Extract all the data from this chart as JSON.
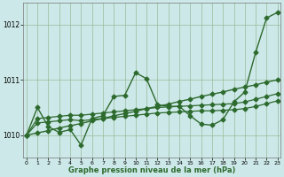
{
  "xlabel": "Graphe pression niveau de la mer (hPa)",
  "bg_color": "#cce8e8",
  "grid_color": "#99bb99",
  "line_color": "#2d6a2d",
  "ylim": [
    1009.6,
    1012.4
  ],
  "xlim": [
    -0.3,
    23.3
  ],
  "yticks": [
    1010,
    1011,
    1012
  ],
  "xticks": [
    0,
    1,
    2,
    3,
    4,
    5,
    6,
    7,
    8,
    9,
    10,
    11,
    12,
    13,
    14,
    15,
    16,
    17,
    18,
    19,
    20,
    21,
    22,
    23
  ],
  "s_zigzag": [
    1010.0,
    1010.5,
    1010.15,
    1010.05,
    1010.1,
    1009.82,
    1010.3,
    1010.35,
    1010.7,
    1010.72,
    1011.13,
    1011.02,
    1010.55,
    1010.52,
    1010.52,
    1010.35,
    1010.2,
    1010.18,
    1010.28,
    1010.6,
    1010.78,
    1011.5,
    1012.12,
    1012.22
  ],
  "s_diagonal": [
    1010.0,
    1010.04,
    1010.08,
    1010.13,
    1010.17,
    1010.21,
    1010.26,
    1010.3,
    1010.35,
    1010.39,
    1010.43,
    1010.48,
    1010.52,
    1010.56,
    1010.61,
    1010.65,
    1010.7,
    1010.74,
    1010.78,
    1010.83,
    1010.87,
    1010.91,
    1010.96,
    1011.0
  ],
  "s_flat_upper": [
    1010.0,
    1010.3,
    1010.32,
    1010.34,
    1010.36,
    1010.36,
    1010.38,
    1010.4,
    1010.42,
    1010.44,
    1010.46,
    1010.48,
    1010.5,
    1010.51,
    1010.52,
    1010.53,
    1010.54,
    1010.55,
    1010.56,
    1010.57,
    1010.6,
    1010.65,
    1010.7,
    1010.75
  ],
  "s_flat_lower": [
    1010.0,
    1010.22,
    1010.24,
    1010.26,
    1010.28,
    1010.26,
    1010.28,
    1010.3,
    1010.32,
    1010.34,
    1010.36,
    1010.38,
    1010.4,
    1010.41,
    1010.42,
    1010.43,
    1010.44,
    1010.44,
    1010.45,
    1010.46,
    1010.48,
    1010.52,
    1010.57,
    1010.62
  ]
}
